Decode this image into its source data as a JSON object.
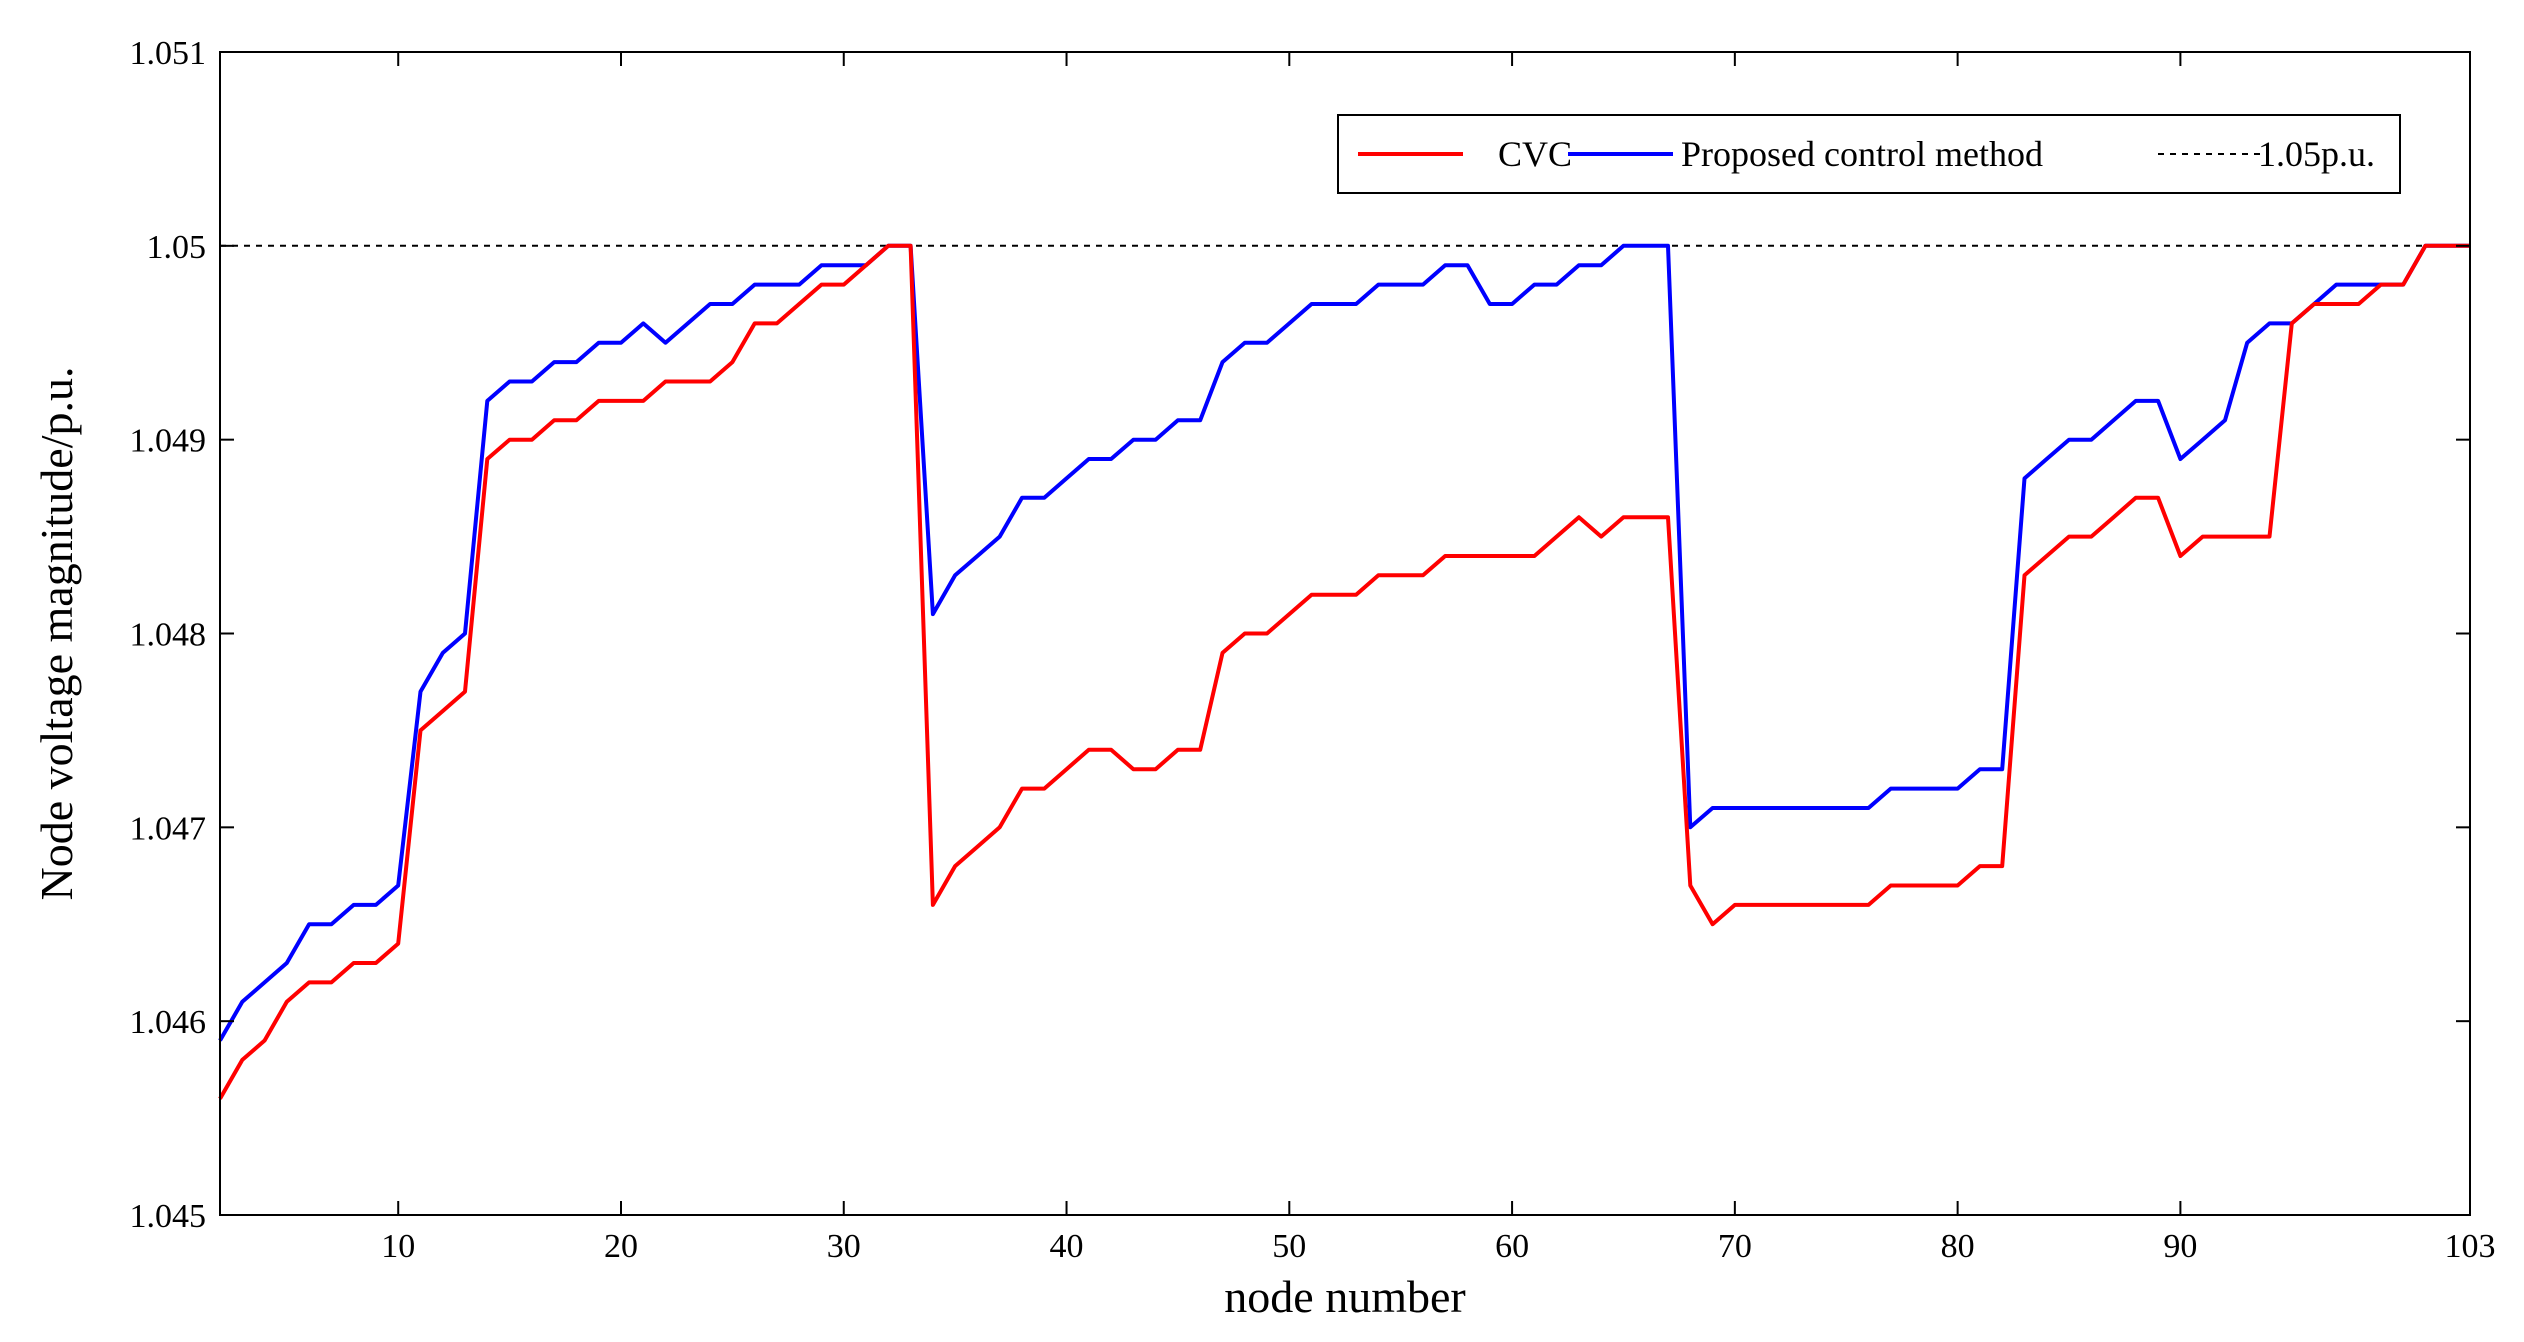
{
  "chart_data": {
    "type": "line",
    "title": "",
    "xlabel": "node number",
    "ylabel": "Node voltage magnitude/p.u.",
    "xlim": [
      2,
      103
    ],
    "ylim": [
      1.045,
      1.051
    ],
    "xticks": [
      10,
      20,
      30,
      40,
      50,
      60,
      70,
      80,
      90,
      103
    ],
    "yticks": [
      1.045,
      1.046,
      1.047,
      1.048,
      1.049,
      1.05,
      1.051
    ],
    "ytick_labels": [
      "1.045",
      "1.046",
      "1.047",
      "1.048",
      "1.049",
      "1.05",
      "1.051"
    ],
    "grid": false,
    "legend_position": "top-right",
    "series": [
      {
        "name": "CVC",
        "color": "#ff0000",
        "style": "solid",
        "x": [
          2,
          3,
          4,
          5,
          6,
          7,
          8,
          9,
          10,
          11,
          12,
          13,
          14,
          15,
          16,
          17,
          18,
          19,
          20,
          21,
          22,
          23,
          24,
          25,
          26,
          27,
          28,
          29,
          30,
          31,
          32,
          33,
          34,
          35,
          36,
          37,
          38,
          39,
          40,
          41,
          42,
          43,
          44,
          45,
          46,
          47,
          48,
          49,
          50,
          51,
          52,
          53,
          54,
          55,
          56,
          57,
          58,
          59,
          60,
          61,
          62,
          63,
          64,
          65,
          66,
          67,
          68,
          69,
          70,
          71,
          72,
          73,
          74,
          75,
          76,
          77,
          78,
          79,
          80,
          81,
          82,
          83,
          84,
          85,
          86,
          87,
          88,
          89,
          90,
          91,
          92,
          93,
          94,
          95,
          96,
          97,
          98,
          99,
          100,
          101,
          102,
          103
        ],
        "values": [
          1.0456,
          1.0458,
          1.0459,
          1.0461,
          1.0462,
          1.0462,
          1.0463,
          1.0463,
          1.0464,
          1.0475,
          1.0476,
          1.0477,
          1.0489,
          1.049,
          1.049,
          1.0491,
          1.0491,
          1.0492,
          1.0492,
          1.0492,
          1.0493,
          1.0493,
          1.0493,
          1.0494,
          1.0496,
          1.0496,
          1.0497,
          1.0498,
          1.0498,
          1.0499,
          1.05,
          1.05,
          1.0466,
          1.0468,
          1.0469,
          1.047,
          1.0472,
          1.0472,
          1.0473,
          1.0474,
          1.0474,
          1.0473,
          1.0473,
          1.0474,
          1.0474,
          1.0479,
          1.048,
          1.048,
          1.0481,
          1.0482,
          1.0482,
          1.0482,
          1.0483,
          1.0483,
          1.0483,
          1.0484,
          1.0484,
          1.0484,
          1.0484,
          1.0484,
          1.0485,
          1.0486,
          1.0485,
          1.0486,
          1.0486,
          1.0486,
          1.0467,
          1.0465,
          1.0466,
          1.0466,
          1.0466,
          1.0466,
          1.0466,
          1.0466,
          1.0466,
          1.0467,
          1.0467,
          1.0467,
          1.0467,
          1.0468,
          1.0468,
          1.0483,
          1.0484,
          1.0485,
          1.0485,
          1.0486,
          1.0487,
          1.0487,
          1.0484,
          1.0485,
          1.0485,
          1.0485,
          1.0485,
          1.0496,
          1.0497,
          1.0497,
          1.0497,
          1.0498,
          1.0498,
          1.05,
          1.05,
          1.05
        ]
      },
      {
        "name": "Proposed control method",
        "color": "#0000ff",
        "style": "solid",
        "x": [
          2,
          3,
          4,
          5,
          6,
          7,
          8,
          9,
          10,
          11,
          12,
          13,
          14,
          15,
          16,
          17,
          18,
          19,
          20,
          21,
          22,
          23,
          24,
          25,
          26,
          27,
          28,
          29,
          30,
          31,
          32,
          33,
          34,
          35,
          36,
          37,
          38,
          39,
          40,
          41,
          42,
          43,
          44,
          45,
          46,
          47,
          48,
          49,
          50,
          51,
          52,
          53,
          54,
          55,
          56,
          57,
          58,
          59,
          60,
          61,
          62,
          63,
          64,
          65,
          66,
          67,
          68,
          69,
          70,
          71,
          72,
          73,
          74,
          75,
          76,
          77,
          78,
          79,
          80,
          81,
          82,
          83,
          84,
          85,
          86,
          87,
          88,
          89,
          90,
          91,
          92,
          93,
          94,
          95,
          96,
          97,
          98,
          99,
          100,
          101,
          102,
          103
        ],
        "values": [
          1.0459,
          1.0461,
          1.0462,
          1.0463,
          1.0465,
          1.0465,
          1.0466,
          1.0466,
          1.0467,
          1.0477,
          1.0479,
          1.048,
          1.0492,
          1.0493,
          1.0493,
          1.0494,
          1.0494,
          1.0495,
          1.0495,
          1.0496,
          1.0495,
          1.0496,
          1.0497,
          1.0497,
          1.0498,
          1.0498,
          1.0498,
          1.0499,
          1.0499,
          1.0499,
          1.05,
          1.05,
          1.0481,
          1.0483,
          1.0484,
          1.0485,
          1.0487,
          1.0487,
          1.0488,
          1.0489,
          1.0489,
          1.049,
          1.049,
          1.0491,
          1.0491,
          1.0494,
          1.0495,
          1.0495,
          1.0496,
          1.0497,
          1.0497,
          1.0497,
          1.0498,
          1.0498,
          1.0498,
          1.0499,
          1.0499,
          1.0497,
          1.0497,
          1.0498,
          1.0498,
          1.0499,
          1.0499,
          1.05,
          1.05,
          1.05,
          1.047,
          1.0471,
          1.0471,
          1.0471,
          1.0471,
          1.0471,
          1.0471,
          1.0471,
          1.0471,
          1.0472,
          1.0472,
          1.0472,
          1.0472,
          1.0473,
          1.0473,
          1.0488,
          1.0489,
          1.049,
          1.049,
          1.0491,
          1.0492,
          1.0492,
          1.0489,
          1.049,
          1.0491,
          1.0495,
          1.0496,
          1.0496,
          1.0497,
          1.0498,
          1.0498,
          1.0498,
          1.0498,
          1.05,
          1.05,
          1.05
        ]
      },
      {
        "name": "1.05p.u.",
        "color": "#000000",
        "style": "dashed",
        "x": [
          2,
          103
        ],
        "values": [
          1.05,
          1.05
        ]
      }
    ]
  }
}
